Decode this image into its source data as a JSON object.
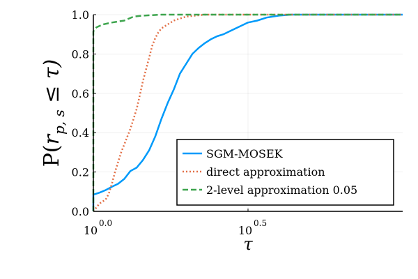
{
  "chart_data": {
    "type": "line",
    "title": "",
    "xlabel": "τ",
    "ylabel": "P(r_{p,s} ≤ τ)",
    "ylabel_parts": {
      "prefix": "P(",
      "var": "r",
      "subscript": "p, s",
      "rel": " ≤ τ)"
    },
    "x_scale": "log10",
    "xlim": [
      1.0,
      10.0
    ],
    "ylim": [
      0.0,
      1.0
    ],
    "x_ticks": [
      {
        "value": 1.0,
        "base": "10",
        "exp": "0.0"
      },
      {
        "value": 3.1623,
        "base": "10",
        "exp": "0.5"
      }
    ],
    "y_ticks": [
      {
        "value": 0.0,
        "label": "0.0"
      },
      {
        "value": 0.2,
        "label": "0.2"
      },
      {
        "value": 0.4,
        "label": "0.4"
      },
      {
        "value": 0.6,
        "label": "0.6"
      },
      {
        "value": 0.8,
        "label": "0.8"
      },
      {
        "value": 1.0,
        "label": "1.0"
      }
    ],
    "grid": true,
    "legend_position": "bottom-right",
    "series": [
      {
        "name": "SGM-MOSEK",
        "color": "#009AFA",
        "style": "solid",
        "points": [
          [
            1.0,
            0.0
          ],
          [
            1.0,
            0.085
          ],
          [
            1.047,
            0.095
          ],
          [
            1.096,
            0.108
          ],
          [
            1.148,
            0.125
          ],
          [
            1.202,
            0.14
          ],
          [
            1.259,
            0.165
          ],
          [
            1.318,
            0.205
          ],
          [
            1.38,
            0.222
          ],
          [
            1.445,
            0.26
          ],
          [
            1.514,
            0.31
          ],
          [
            1.585,
            0.38
          ],
          [
            1.66,
            0.47
          ],
          [
            1.738,
            0.55
          ],
          [
            1.82,
            0.62
          ],
          [
            1.905,
            0.7
          ],
          [
            1.995,
            0.75
          ],
          [
            2.089,
            0.8
          ],
          [
            2.188,
            0.83
          ],
          [
            2.291,
            0.855
          ],
          [
            2.399,
            0.875
          ],
          [
            2.512,
            0.89
          ],
          [
            2.63,
            0.9
          ],
          [
            2.754,
            0.915
          ],
          [
            2.884,
            0.93
          ],
          [
            3.02,
            0.945
          ],
          [
            3.162,
            0.96
          ],
          [
            3.388,
            0.97
          ],
          [
            3.631,
            0.985
          ],
          [
            3.981,
            0.995
          ],
          [
            4.365,
            1.0
          ],
          [
            10.0,
            1.0
          ]
        ]
      },
      {
        "name": "direct approximation",
        "color": "#E26F46",
        "style": "dotted",
        "points": [
          [
            1.0,
            0.0
          ],
          [
            1.023,
            0.02
          ],
          [
            1.047,
            0.04
          ],
          [
            1.072,
            0.05
          ],
          [
            1.096,
            0.06
          ],
          [
            1.122,
            0.09
          ],
          [
            1.148,
            0.14
          ],
          [
            1.175,
            0.2
          ],
          [
            1.202,
            0.25
          ],
          [
            1.23,
            0.3
          ],
          [
            1.259,
            0.34
          ],
          [
            1.288,
            0.38
          ],
          [
            1.318,
            0.42
          ],
          [
            1.349,
            0.47
          ],
          [
            1.38,
            0.52
          ],
          [
            1.413,
            0.59
          ],
          [
            1.445,
            0.66
          ],
          [
            1.479,
            0.72
          ],
          [
            1.514,
            0.78
          ],
          [
            1.549,
            0.84
          ],
          [
            1.585,
            0.88
          ],
          [
            1.622,
            0.91
          ],
          [
            1.66,
            0.93
          ],
          [
            1.738,
            0.95
          ],
          [
            1.82,
            0.97
          ],
          [
            1.905,
            0.98
          ],
          [
            1.995,
            0.99
          ],
          [
            2.138,
            0.995
          ],
          [
            2.291,
            1.0
          ],
          [
            10.0,
            1.0
          ]
        ]
      },
      {
        "name": "2-level approximation 0.05",
        "color": "#3DA44D",
        "style": "dashed",
        "points": [
          [
            1.0,
            0.0
          ],
          [
            1.0,
            0.915
          ],
          [
            1.023,
            0.935
          ],
          [
            1.072,
            0.95
          ],
          [
            1.148,
            0.96
          ],
          [
            1.259,
            0.97
          ],
          [
            1.349,
            0.99
          ],
          [
            1.445,
            0.995
          ],
          [
            1.66,
            1.0
          ],
          [
            10.0,
            1.0
          ]
        ]
      }
    ]
  }
}
